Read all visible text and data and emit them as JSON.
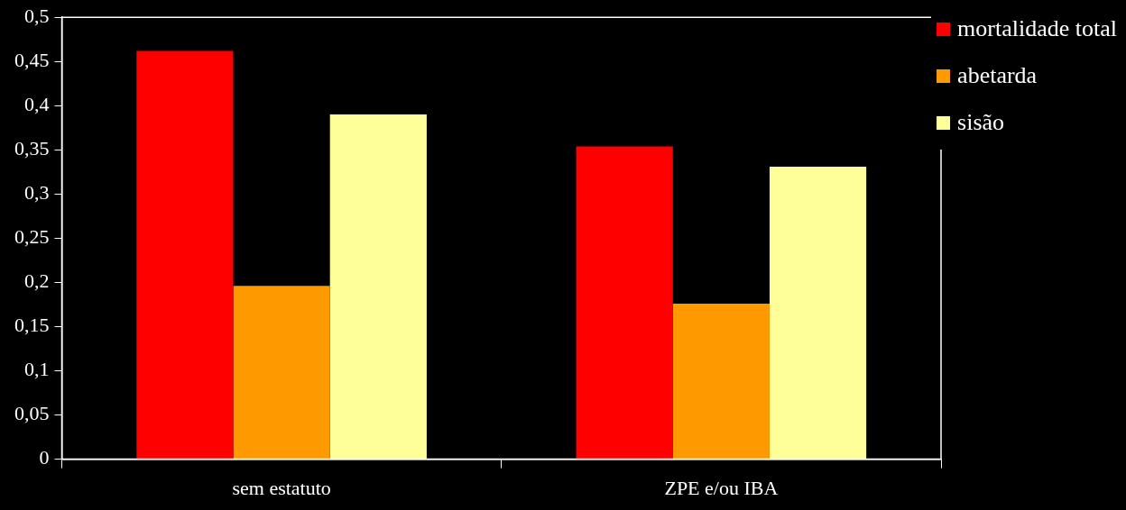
{
  "chart_data": {
    "type": "bar",
    "categories": [
      "sem estatuto",
      "ZPE e/ou IBA"
    ],
    "series": [
      {
        "name": "mortalidade total",
        "color": "#ff0000",
        "values": [
          0.462,
          0.354
        ]
      },
      {
        "name": "abetarda",
        "color": "#ff9900",
        "values": [
          0.196,
          0.176
        ]
      },
      {
        "name": "sisão",
        "color": "#ffff99",
        "values": [
          0.39,
          0.331
        ]
      }
    ],
    "ylim": [
      0,
      0.5
    ],
    "yticks": [
      {
        "value": 0,
        "label": "0"
      },
      {
        "value": 0.05,
        "label": "0,05"
      },
      {
        "value": 0.1,
        "label": "0,1"
      },
      {
        "value": 0.15,
        "label": "0,15"
      },
      {
        "value": 0.2,
        "label": "0,2"
      },
      {
        "value": 0.25,
        "label": "0,25"
      },
      {
        "value": 0.3,
        "label": "0,3"
      },
      {
        "value": 0.35,
        "label": "0,35"
      },
      {
        "value": 0.4,
        "label": "0,4"
      },
      {
        "value": 0.45,
        "label": "0,45"
      },
      {
        "value": 0.5,
        "label": "0,5"
      }
    ],
    "grid": false,
    "legend": "top right"
  }
}
